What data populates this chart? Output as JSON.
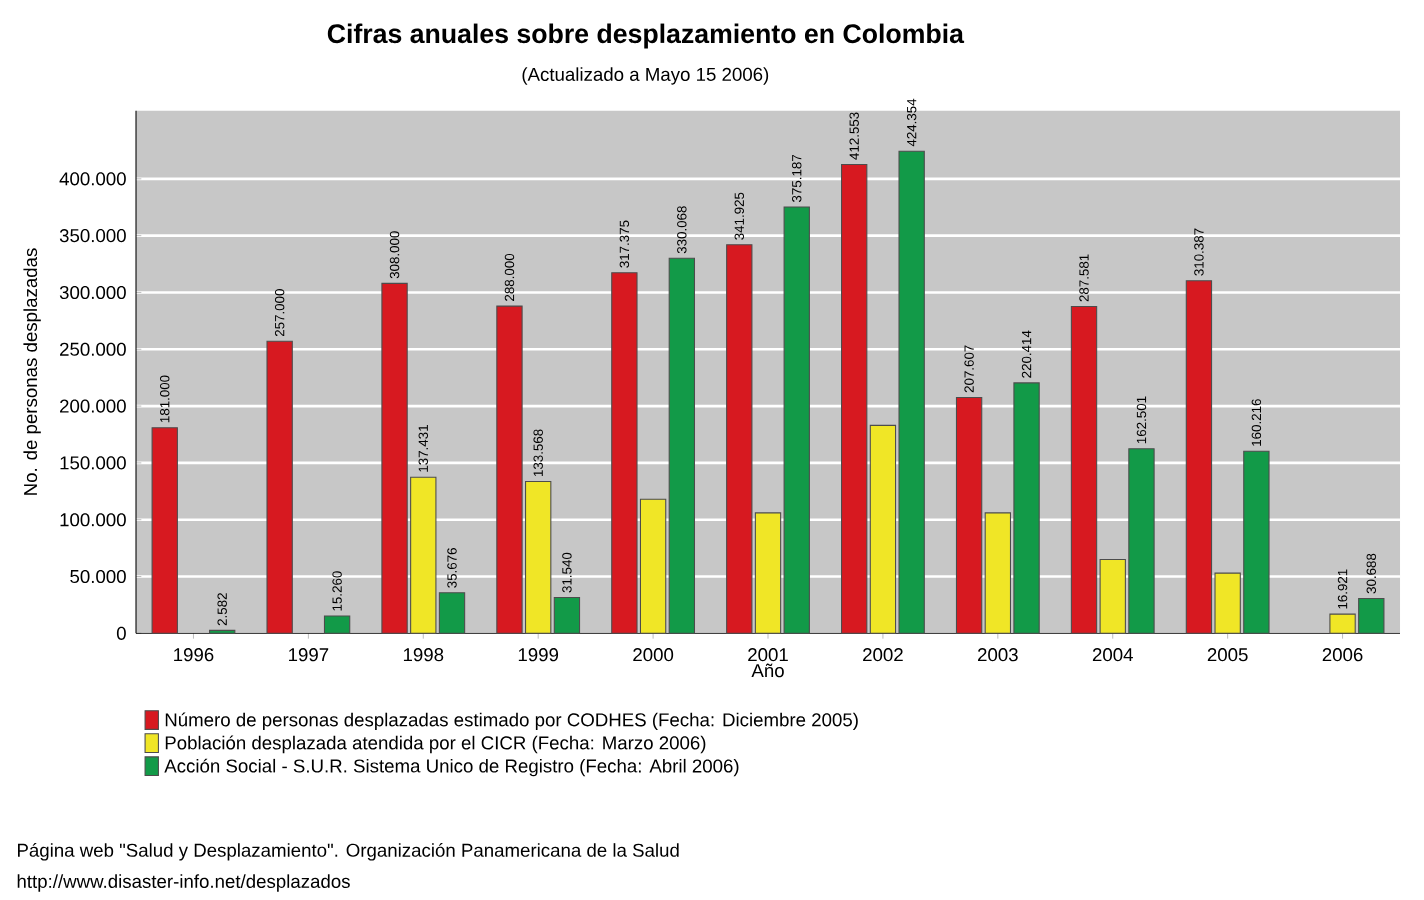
{
  "chart_data": {
    "type": "bar",
    "title": "Cifras anuales sobre desplazamiento en Colombia",
    "subtitle": "(Actualizado a Mayo 15 2006)",
    "xlabel": "Año",
    "ylabel": "No. de personas desplazadas",
    "categories": [
      "1996",
      "1997",
      "1998",
      "1999",
      "2000",
      "2001",
      "2002",
      "2003",
      "2004",
      "2005",
      "2006"
    ],
    "series": [
      {
        "name": "Número de personas desplazadas estimado por CODHES (Fecha: Diciembre 2005)",
        "color": "#d71920",
        "values": [
          181000,
          257000,
          308000,
          288000,
          317375,
          341925,
          412553,
          207607,
          287581,
          310387,
          null
        ],
        "value_labels": [
          "181.000",
          "257.000",
          "308.000",
          "288.000",
          "317.375",
          "341.925",
          "412.553",
          "207.607",
          "287.581",
          "310.387",
          null
        ]
      },
      {
        "name": "Población desplazada atendida por el CICR (Fecha: Marzo 2006)",
        "color": "#f0e626",
        "values": [
          null,
          null,
          137431,
          133568,
          118000,
          106000,
          183000,
          106000,
          65000,
          53000,
          16921
        ],
        "value_labels": [
          null,
          null,
          "137.431",
          "133.568",
          null,
          null,
          null,
          null,
          null,
          null,
          "16.921"
        ]
      },
      {
        "name": "Acción Social  - S.U.R. Sistema Unico de Registro (Fecha: Abril 2006)",
        "color": "#129a48",
        "values": [
          2582,
          15260,
          35676,
          31540,
          330068,
          375187,
          424354,
          220414,
          162501,
          160216,
          30688
        ],
        "value_labels": [
          "2.582",
          "15.260",
          "35.676",
          "31.540",
          "330.068",
          "375.187",
          "424.354",
          "220.414",
          "162.501",
          "160.216",
          "30.688"
        ]
      }
    ],
    "ylim": [
      0,
      460000
    ],
    "yticks": [
      {
        "value": 0,
        "label": "0"
      },
      {
        "value": 50000,
        "label": "50.000"
      },
      {
        "value": 100000,
        "label": "100.000"
      },
      {
        "value": 150000,
        "label": "150.000"
      },
      {
        "value": 200000,
        "label": "200.000"
      },
      {
        "value": 250000,
        "label": "250.000"
      },
      {
        "value": 300000,
        "label": "300.000"
      },
      {
        "value": 350000,
        "label": "350.000"
      },
      {
        "value": 400000,
        "label": "400.000"
      }
    ],
    "grid": "y",
    "legend": "bottom",
    "annotations": [
      "Página web \"Salud y Desplazamiento\". Organización Panamericana de la Salud",
      "http://www.disaster-info.net/desplazados"
    ]
  }
}
